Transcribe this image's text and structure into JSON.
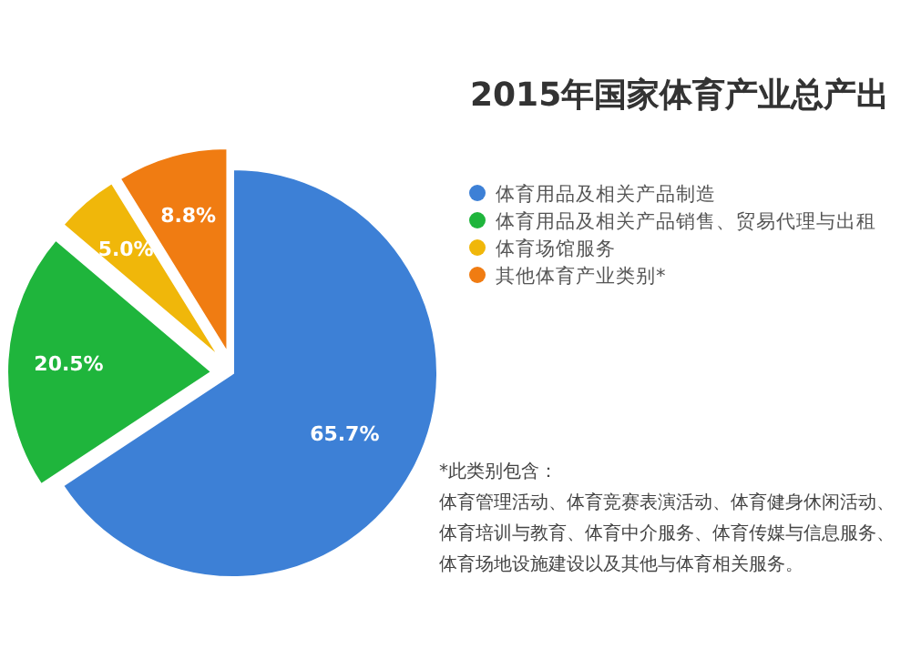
{
  "chart_data": {
    "type": "pie",
    "title": "2015年国家体育产业总产出",
    "categories": [
      "体育用品及相关产品制造",
      "体育用品及相关产品销售、贸易代理与出租",
      "体育场馆服务",
      "其他体育产业类别*"
    ],
    "values": [
      65.7,
      20.5,
      5.0,
      8.8
    ],
    "colors": [
      "#3d80d6",
      "#1fb53c",
      "#f0b70a",
      "#f07c12"
    ],
    "value_labels": [
      "65.7%",
      "20.5%",
      "5.0%",
      "8.8%"
    ],
    "legend": "right",
    "annotations": [
      "*此类别包含：",
      "体育管理活动、体育竞赛表演活动、体育健身休闲活动、",
      "体育培训与教育、体育中介服务、体育传媒与信息服务、",
      "体育场地设施建设以及其他与体育相关服务。"
    ]
  }
}
